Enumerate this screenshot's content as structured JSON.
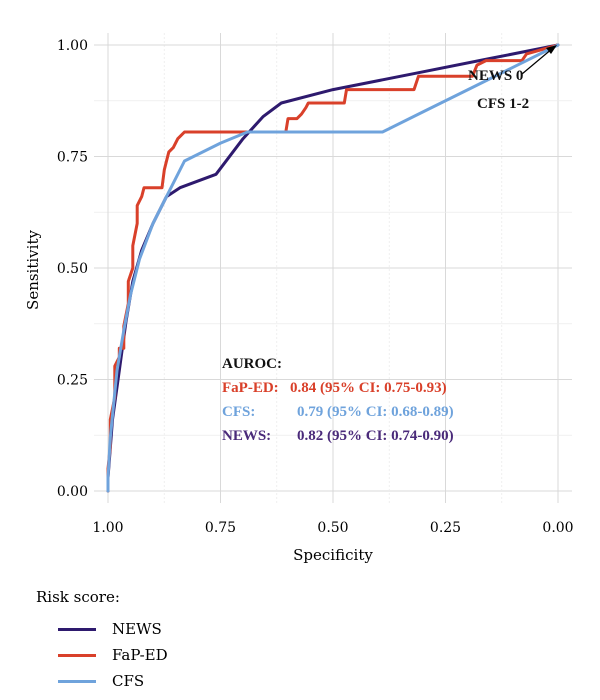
{
  "chart_data": {
    "type": "line",
    "title": "",
    "xlabel": "Specificity",
    "ylabel": "Sensitivity",
    "xlim": [
      1.0,
      0.0
    ],
    "ylim": [
      0.0,
      1.0
    ],
    "x_reversed": true,
    "grid": true,
    "x_ticks": [
      "1.00",
      "0.75",
      "0.50",
      "0.25",
      "0.00"
    ],
    "y_ticks": [
      "0.00",
      "0.25",
      "0.50",
      "0.75",
      "1.00"
    ],
    "x_tick_values": [
      1.0,
      0.75,
      0.5,
      0.25,
      0.0
    ],
    "y_tick_values": [
      0.0,
      0.25,
      0.5,
      0.75,
      1.0
    ],
    "series": [
      {
        "name": "NEWS",
        "color": "#2e1a6e",
        "points": [
          [
            1.0,
            0.0
          ],
          [
            1.0,
            0.03
          ],
          [
            0.99,
            0.16
          ],
          [
            0.975,
            0.27
          ],
          [
            0.96,
            0.38
          ],
          [
            0.945,
            0.47
          ],
          [
            0.925,
            0.54
          ],
          [
            0.9,
            0.6
          ],
          [
            0.87,
            0.66
          ],
          [
            0.84,
            0.68
          ],
          [
            0.76,
            0.71
          ],
          [
            0.7,
            0.79
          ],
          [
            0.655,
            0.84
          ],
          [
            0.615,
            0.87
          ],
          [
            0.5,
            0.9
          ],
          [
            0.3,
            0.94
          ],
          [
            0.15,
            0.97
          ],
          [
            0.0,
            1.0
          ]
        ]
      },
      {
        "name": "FaP-ED",
        "color": "#d9402a",
        "points": [
          [
            1.0,
            0.0
          ],
          [
            1.0,
            0.05
          ],
          [
            0.995,
            0.1
          ],
          [
            0.995,
            0.16
          ],
          [
            0.985,
            0.21
          ],
          [
            0.985,
            0.28
          ],
          [
            0.975,
            0.3
          ],
          [
            0.975,
            0.32
          ],
          [
            0.965,
            0.32
          ],
          [
            0.965,
            0.37
          ],
          [
            0.955,
            0.42
          ],
          [
            0.955,
            0.47
          ],
          [
            0.945,
            0.5
          ],
          [
            0.945,
            0.55
          ],
          [
            0.935,
            0.6
          ],
          [
            0.935,
            0.64
          ],
          [
            0.925,
            0.66
          ],
          [
            0.92,
            0.68
          ],
          [
            0.88,
            0.68
          ],
          [
            0.875,
            0.72
          ],
          [
            0.87,
            0.74
          ],
          [
            0.865,
            0.76
          ],
          [
            0.855,
            0.77
          ],
          [
            0.845,
            0.79
          ],
          [
            0.835,
            0.8
          ],
          [
            0.83,
            0.805
          ],
          [
            0.605,
            0.805
          ],
          [
            0.6,
            0.835
          ],
          [
            0.58,
            0.835
          ],
          [
            0.57,
            0.845
          ],
          [
            0.56,
            0.86
          ],
          [
            0.555,
            0.87
          ],
          [
            0.475,
            0.87
          ],
          [
            0.47,
            0.9
          ],
          [
            0.32,
            0.9
          ],
          [
            0.31,
            0.93
          ],
          [
            0.19,
            0.93
          ],
          [
            0.18,
            0.955
          ],
          [
            0.16,
            0.965
          ],
          [
            0.08,
            0.965
          ],
          [
            0.07,
            0.98
          ],
          [
            0.0,
            1.0
          ]
        ]
      },
      {
        "name": "CFS",
        "color": "#6fa3dc",
        "points": [
          [
            1.0,
            0.0
          ],
          [
            1.0,
            0.03
          ],
          [
            0.995,
            0.12
          ],
          [
            0.98,
            0.27
          ],
          [
            0.965,
            0.36
          ],
          [
            0.95,
            0.44
          ],
          [
            0.93,
            0.52
          ],
          [
            0.9,
            0.6
          ],
          [
            0.87,
            0.66
          ],
          [
            0.83,
            0.74
          ],
          [
            0.75,
            0.78
          ],
          [
            0.69,
            0.805
          ],
          [
            0.39,
            0.805
          ],
          [
            0.3,
            0.85
          ],
          [
            0.2,
            0.9
          ],
          [
            0.1,
            0.95
          ],
          [
            0.0,
            1.0
          ]
        ]
      }
    ],
    "annotations": {
      "point_label_1": "NEWS 0",
      "point_label_2": "CFS 1-2",
      "auroc_title": "AUROC:",
      "auroc_lines": [
        {
          "label": "FaP-ED:",
          "value": "0.84 (95% CI: 0.75-0.93)",
          "color": "#d9402a"
        },
        {
          "label": "CFS:",
          "value": "0.79 (95% CI: 0.68-0.89)",
          "color": "#6fa3dc"
        },
        {
          "label": "NEWS:",
          "value": "0.82 (95% CI: 0.74-0.90)",
          "color": "#4a2a7a"
        }
      ]
    },
    "legend": {
      "title": "Risk score:",
      "position": "bottom-left",
      "entries": [
        {
          "name": "NEWS",
          "color": "#2e1a6e"
        },
        {
          "name": "FaP-ED",
          "color": "#d9402a"
        },
        {
          "name": "CFS",
          "color": "#6fa3dc"
        }
      ]
    }
  }
}
